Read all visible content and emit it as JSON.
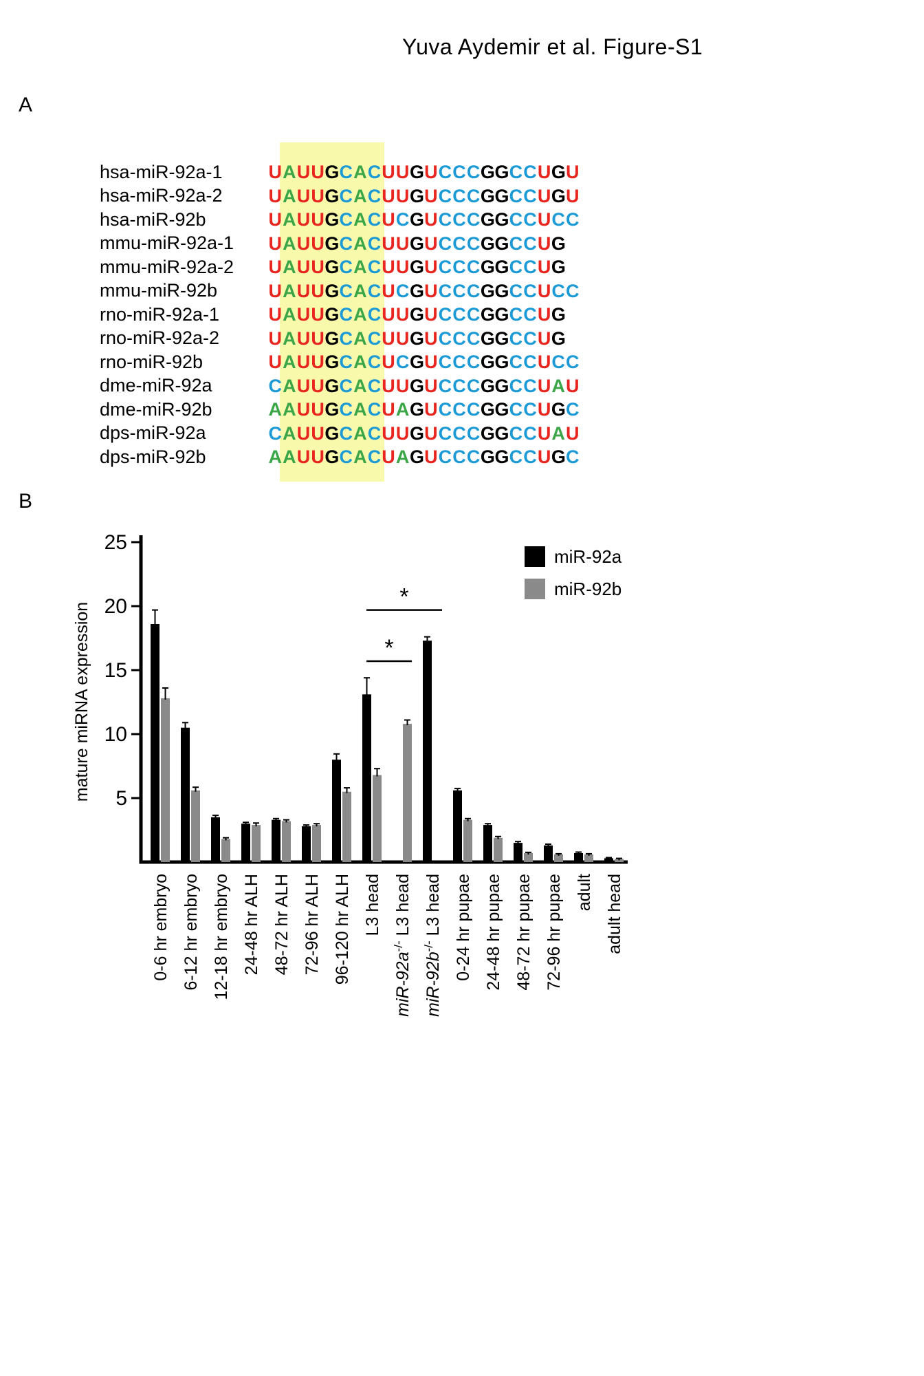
{
  "figure": {
    "title": "Yuva Aydemir et al. Figure-S1",
    "panel_a_label": "A",
    "panel_b_label": "B"
  },
  "alignment": {
    "highlight_color": "#f9f9ab",
    "highlight_start": 1,
    "highlight_end": 8,
    "base_colors": {
      "A": "#3aa648",
      "U": "#e8251f",
      "G": "#000000",
      "C": "#1c9ad6"
    },
    "rows": [
      {
        "name": "hsa-miR-92a-1",
        "seq": "UAUUGCACUUGUCCCGGCCUGU"
      },
      {
        "name": "hsa-miR-92a-2",
        "seq": "UAUUGCACUUGUCCCGGCCUGU"
      },
      {
        "name": "hsa-miR-92b",
        "seq": "UAUUGCACUCGUCCCGGCCUCC"
      },
      {
        "name": "mmu-miR-92a-1",
        "seq": "UAUUGCACUUGUCCCGGCCUG"
      },
      {
        "name": "mmu-miR-92a-2",
        "seq": "UAUUGCACUUGUCCCGGCCUG"
      },
      {
        "name": "mmu-miR-92b",
        "seq": "UAUUGCACUCGUCCCGGCCUCC"
      },
      {
        "name": "rno-miR-92a-1",
        "seq": "UAUUGCACUUGUCCCGGCCUG"
      },
      {
        "name": "rno-miR-92a-2",
        "seq": "UAUUGCACUUGUCCCGGCCUG"
      },
      {
        "name": "rno-miR-92b",
        "seq": "UAUUGCACUCGUCCCGGCCUCC"
      },
      {
        "name": "dme-miR-92a",
        "seq": "CAUUGCACUUGUCCCGGCCUAU"
      },
      {
        "name": "dme-miR-92b",
        "seq": "AAUUGCACUAGUCCCGGCCUGC"
      },
      {
        "name": "dps-miR-92a",
        "seq": "CAUUGCACUUGUCCCGGCCUAU"
      },
      {
        "name": "dps-miR-92b",
        "seq": "AAUUGCACUAGUCCCGGCCUGC"
      }
    ]
  },
  "chart_data": {
    "type": "bar",
    "title": "",
    "xlabel": "",
    "ylabel": "mature miRNA expression",
    "ylim": [
      0,
      25
    ],
    "yticks": [
      5,
      10,
      15,
      20,
      25
    ],
    "grid": false,
    "legend_position": "top-right",
    "legend": [
      {
        "name": "miR-92a",
        "color": "#000000"
      },
      {
        "name": "miR-92b",
        "color": "#8a8a8a"
      }
    ],
    "categories": [
      {
        "text": "0-6 hr embryo"
      },
      {
        "text": "6-12 hr embryo"
      },
      {
        "text": "12-18 hr embryo"
      },
      {
        "text": "24-48 hr ALH"
      },
      {
        "text": "48-72 hr ALH"
      },
      {
        "text": "72-96 hr ALH"
      },
      {
        "text": "96-120 hr ALH"
      },
      {
        "text": "L3 head"
      },
      {
        "italic": "miR-92a",
        "sup": "-/-",
        "text": " L3 head"
      },
      {
        "italic": "miR-92b",
        "sup": "-/-",
        "text": " L3 head"
      },
      {
        "text": "0-24 hr pupae"
      },
      {
        "text": "24-48 hr pupae"
      },
      {
        "text": "48-72 hr pupae"
      },
      {
        "text": "72-96 hr pupae"
      },
      {
        "text": "adult"
      },
      {
        "text": "adult head"
      }
    ],
    "series": [
      {
        "name": "miR-92a",
        "color": "#000000",
        "values": [
          18.6,
          10.5,
          3.5,
          3.0,
          3.3,
          2.8,
          8.0,
          13.1,
          null,
          17.3,
          5.6,
          2.9,
          1.5,
          1.3,
          0.7,
          0.3
        ],
        "errors": [
          1.1,
          0.4,
          0.15,
          0.1,
          0.1,
          0.1,
          0.45,
          1.3,
          null,
          0.3,
          0.15,
          0.1,
          0.1,
          0.1,
          0.08,
          0.05
        ]
      },
      {
        "name": "miR-92b",
        "color": "#8a8a8a",
        "values": [
          12.8,
          5.6,
          1.8,
          2.9,
          3.2,
          2.9,
          5.5,
          6.8,
          10.8,
          null,
          3.3,
          1.9,
          0.7,
          0.6,
          0.6,
          0.25
        ],
        "errors": [
          0.8,
          0.25,
          0.1,
          0.15,
          0.1,
          0.1,
          0.3,
          0.5,
          0.3,
          null,
          0.1,
          0.1,
          0.06,
          0.05,
          0.05,
          0.04
        ]
      }
    ],
    "significance": [
      {
        "from_cat": 7,
        "to_cat": 8,
        "y": 15.7,
        "label": "*"
      },
      {
        "from_cat": 7,
        "to_cat": 9,
        "y": 19.7,
        "label": "*"
      }
    ]
  }
}
